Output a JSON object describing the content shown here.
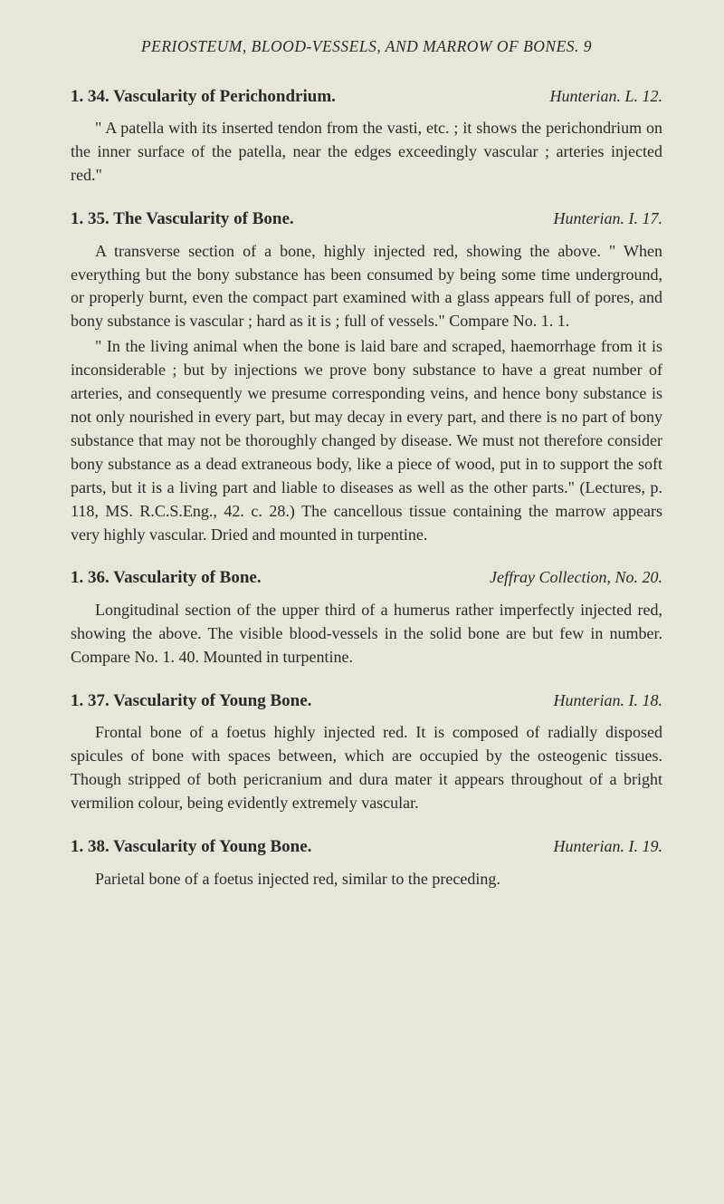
{
  "pageHeader": "PERIOSTEUM, BLOOD-VESSELS, AND MARROW OF BONES. 9",
  "entries": [
    {
      "title": "1. 34. Vascularity of Perichondrium.",
      "reference": "Hunterian. L. 12.",
      "paragraphs": [
        "\" A patella with its inserted tendon from the vasti, etc. ; it shows the perichondrium on the inner surface of the patella, near the edges exceedingly vascular ; arteries injected red.\""
      ]
    },
    {
      "title": "1. 35. The Vascularity of Bone.",
      "reference": "Hunterian. I. 17.",
      "paragraphs": [
        "A transverse section of a bone, highly injected red, showing the above. \" When everything but the bony substance has been consumed by being some time underground, or properly burnt, even the compact part examined with a glass appears full of pores, and bony substance is vascular ; hard as it is ; full of vessels.\" Compare No. 1. 1.",
        "\" In the living animal when the bone is laid bare and scraped, haemorrhage from it is inconsiderable ; but by injections we prove bony substance to have a great number of arteries, and consequently we presume corresponding veins, and hence bony substance is not only nourished in every part, but may decay in every part, and there is no part of bony substance that may not be thoroughly changed by disease. We must not therefore consider bony substance as a dead extraneous body, like a piece of wood, put in to support the soft parts, but it is a living part and liable to diseases as well as the other parts.\" (Lectures, p. 118, MS. R.C.S.Eng., 42. c. 28.) The cancellous tissue containing the marrow appears very highly vascular. Dried and mounted in turpentine."
      ]
    },
    {
      "title": "1. 36. Vascularity of Bone.",
      "reference": "Jeffray Collection, No. 20.",
      "paragraphs": [
        "Longitudinal section of the upper third of a humerus rather imperfectly injected red, showing the above. The visible blood-vessels in the solid bone are but few in number. Compare No. 1. 40. Mounted in turpentine."
      ]
    },
    {
      "title": "1. 37. Vascularity of Young Bone.",
      "reference": "Hunterian. I. 18.",
      "paragraphs": [
        "Frontal bone of a foetus highly injected red. It is composed of radially disposed spicules of bone with spaces between, which are occupied by the osteogenic tissues. Though stripped of both pericranium and dura mater it appears throughout of a bright vermilion colour, being evidently extremely vascular."
      ]
    },
    {
      "title": "1. 38. Vascularity of Young Bone.",
      "reference": "Hunterian. I. 19.",
      "paragraphs": [
        "Parietal bone of a foetus injected red, similar to the preceding."
      ]
    }
  ]
}
